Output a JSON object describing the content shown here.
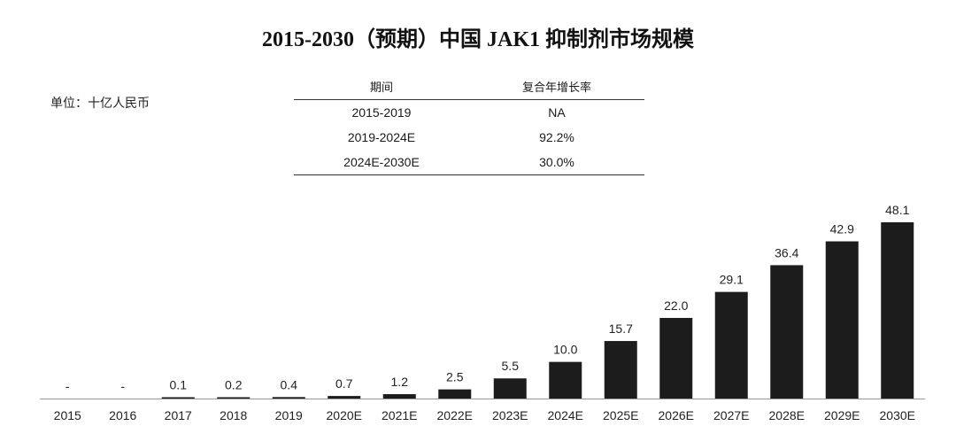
{
  "title": "2015-2030（预期）中国 JAK1 抑制剂市场规模",
  "unit": "单位：十亿人民币",
  "cagr_table": {
    "headers": [
      "期间",
      "复合年增长率"
    ],
    "rows": [
      [
        "2015-2019",
        "NA"
      ],
      [
        "2019-2024E",
        "92.2%"
      ],
      [
        "2024E-2030E",
        "30.0%"
      ]
    ]
  },
  "chart_data": {
    "type": "bar",
    "categories": [
      "2015",
      "2016",
      "2017",
      "2018",
      "2019",
      "2020E",
      "2021E",
      "2022E",
      "2023E",
      "2024E",
      "2025E",
      "2026E",
      "2027E",
      "2028E",
      "2029E",
      "2030E"
    ],
    "values": [
      null,
      null,
      0.1,
      0.2,
      0.4,
      0.7,
      1.2,
      2.5,
      5.5,
      10.0,
      15.7,
      22.0,
      29.1,
      36.4,
      42.9,
      48.1
    ],
    "data_labels": [
      "-",
      "-",
      "0.1",
      "0.2",
      "0.4",
      "0.7",
      "1.2",
      "2.5",
      "5.5",
      "10.0",
      "15.7",
      "22.0",
      "29.1",
      "36.4",
      "42.9",
      "48.1"
    ],
    "bar_color": "#1c1c1c",
    "ylim": [
      0,
      48.1
    ],
    "grid": false,
    "legend": "none"
  }
}
